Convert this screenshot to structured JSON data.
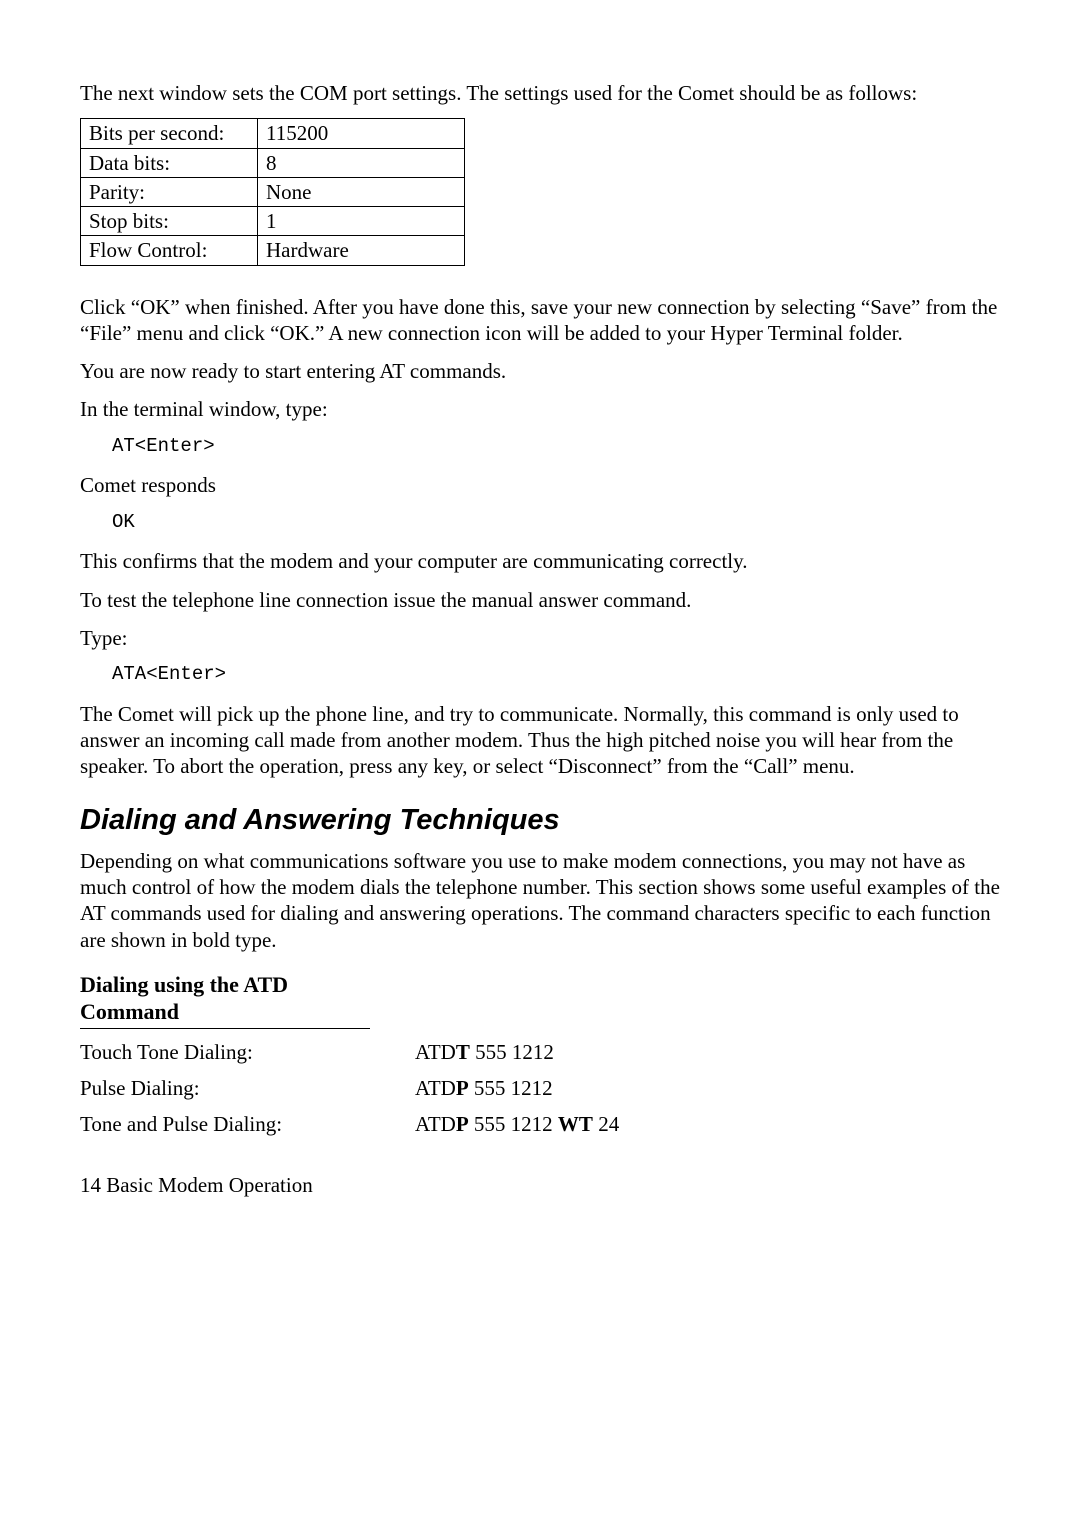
{
  "intro_para": "The next window sets the COM port settings. The settings used for the Comet should be as follows:",
  "settings_table": {
    "rows": [
      {
        "label": "Bits per second:",
        "value": "115200"
      },
      {
        "label": "Data bits:",
        "value": "8"
      },
      {
        "label": "Parity:",
        "value": "None"
      },
      {
        "label": "Stop bits:",
        "value": "1"
      },
      {
        "label": "Flow Control:",
        "value": "Hardware"
      }
    ]
  },
  "para_click_ok": "Click “OK” when finished. After you have done this, save your new connection by selecting “Save” from the “File” menu and click “OK.” A new connection icon will be added to your Hyper Terminal folder.",
  "para_ready": "You are now ready to start entering AT commands.",
  "para_terminal": "In the terminal window, type:",
  "cmd_at": "AT<Enter>",
  "para_comet_responds": "Comet responds",
  "cmd_ok": "OK",
  "para_confirm": "This confirms that the modem and your computer are communicating correctly.",
  "para_test": "To test the telephone line connection issue the manual answer command.",
  "para_type": "Type:",
  "cmd_ata": "ATA<Enter>",
  "para_pickup": "The Comet will pick up the phone line, and try to communicate. Normally, this command is only used to answer an incoming call made from another modem. Thus the high pitched noise you will hear from the speaker. To abort the operation, press any key, or select “Disconnect” from the “Call” menu.",
  "section_heading": "Dialing and Answering Techniques",
  "section_para": "Depending on what communications software you use to make modem connections, you may not have as much control of how the modem dials the telephone number. This section shows some useful examples of the AT commands used for dialing and answering operations. The command characters specific to each function are shown in bold type.",
  "sub_heading": "Dialing using the ATD Command",
  "dial_rows": [
    {
      "label": "Touch Tone Dialing:",
      "pre1": "ATD",
      "b1": "T",
      "mid1": " 555 1212",
      "b2": "",
      "mid2": "",
      "b3": "",
      "tail": ""
    },
    {
      "label": "Pulse Dialing:",
      "pre1": "ATD",
      "b1": "P",
      "mid1": " 555 1212",
      "b2": "",
      "mid2": "",
      "b3": "",
      "tail": ""
    },
    {
      "label": "Tone and Pulse Dialing:",
      "pre1": "ATD",
      "b1": "P",
      "mid1": " 555 1212 ",
      "b2": "W",
      "mid2": "",
      "b3": "T",
      "tail": " 24"
    }
  ],
  "footer": "14  Basic Modem Operation"
}
